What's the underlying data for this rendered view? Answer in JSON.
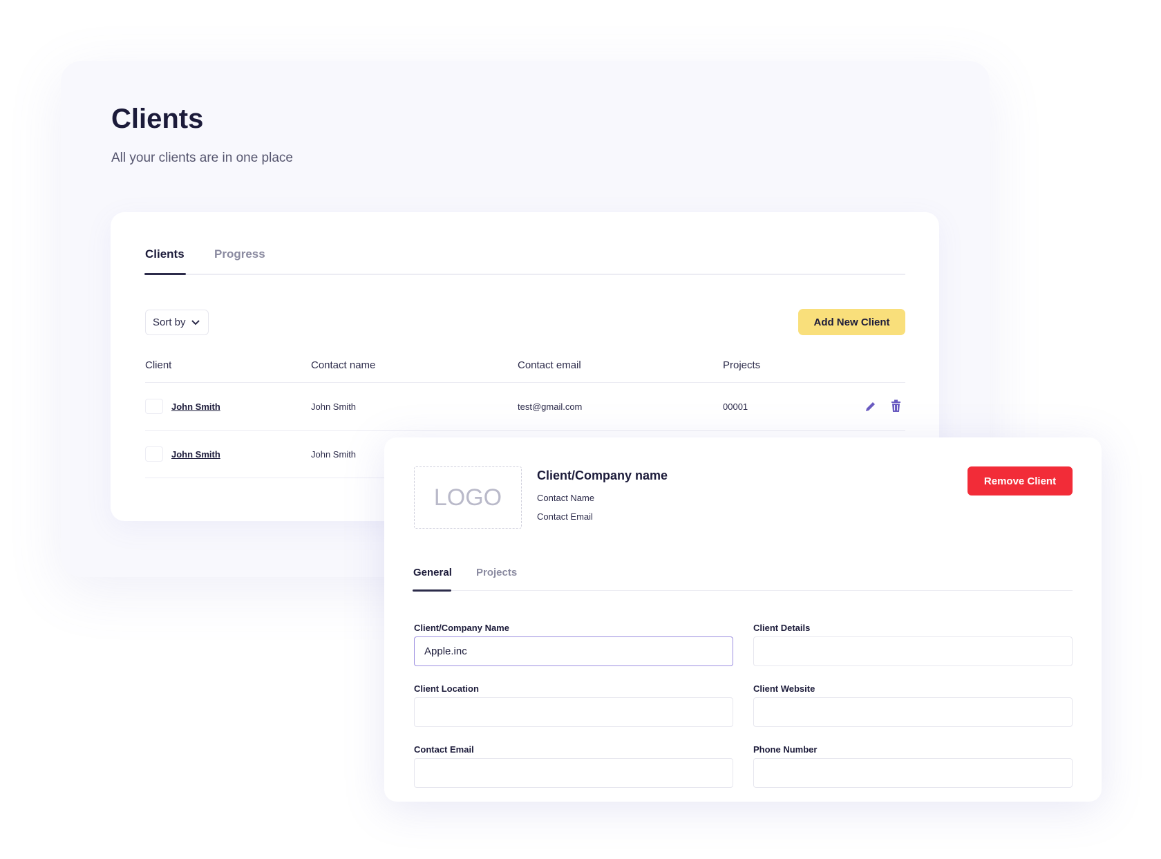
{
  "page": {
    "title": "Clients",
    "subtitle": "All your clients are in one place"
  },
  "tabs": [
    {
      "label": "Clients",
      "active": true
    },
    {
      "label": "Progress",
      "active": false
    }
  ],
  "toolbar": {
    "sort_label": "Sort by",
    "add_label": "Add New Client"
  },
  "table": {
    "headers": [
      "Client",
      "Contact name",
      "Contact email",
      "Projects"
    ],
    "rows": [
      {
        "client": "John Smith",
        "contact": "John Smith",
        "email": "test@gmail.com",
        "projects": "00001"
      },
      {
        "client": "John Smith",
        "contact": "John Smith"
      }
    ]
  },
  "detail": {
    "logo": "LOGO",
    "name": "Client/Company name",
    "contact_name": "Contact Name",
    "contact_email": "Contact Email",
    "remove_label": "Remove Client",
    "tabs": [
      {
        "label": "General",
        "active": true
      },
      {
        "label": "Projects",
        "active": false
      }
    ],
    "fields": [
      {
        "label": "Client/Company Name",
        "value": "Apple.inc"
      },
      {
        "label": "Client Details",
        "value": ""
      },
      {
        "label": "Client Location",
        "value": ""
      },
      {
        "label": "Client Website",
        "value": ""
      },
      {
        "label": "Contact Email",
        "value": ""
      },
      {
        "label": "Phone Number",
        "value": ""
      }
    ]
  },
  "colors": {
    "accent_yellow": "#f9df7b",
    "danger": "#f22c38",
    "icon_purple": "#6a5bc1",
    "focus": "#9b8de0"
  }
}
